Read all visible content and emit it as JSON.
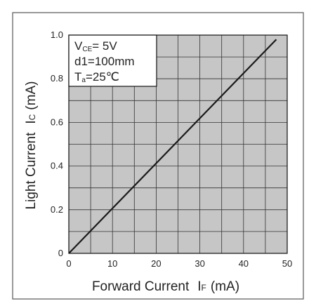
{
  "chart_data": {
    "type": "line",
    "title": "",
    "xlabel": "Forward Current",
    "xlabel_symbol": "I",
    "xlabel_symbol_sub": "F",
    "xlabel_unit": "(mA)",
    "ylabel": "Light Current",
    "ylabel_symbol": "I",
    "ylabel_symbol_sub": "C",
    "ylabel_unit": "(mA)",
    "xlim": [
      0,
      50
    ],
    "ylim": [
      0,
      1.0
    ],
    "x_ticks": [
      0,
      10,
      20,
      30,
      40,
      50
    ],
    "x_tick_labels": [
      "0",
      "10",
      "20",
      "30",
      "40",
      "50"
    ],
    "y_ticks": [
      0,
      0.2,
      0.4,
      0.6,
      0.8,
      1.0
    ],
    "y_tick_labels": [
      "0",
      "0.2",
      "0.4",
      "0.6",
      "0.8",
      "1.0"
    ],
    "minor_x_step": 5,
    "minor_y_step": 0.1,
    "grid": true,
    "plot_background": "#c6c6c6",
    "grid_color": "#333333",
    "series": [
      {
        "color": "#1a1a1a",
        "x": [
          0,
          47.5
        ],
        "y": [
          0,
          0.98
        ]
      }
    ],
    "conditions": {
      "line1": {
        "main": "V",
        "sub": "CE",
        "rest": "= 5V"
      },
      "line2": "d1=100mm",
      "line3": {
        "main": "T",
        "sub": "a",
        "rest": "=25℃"
      }
    }
  }
}
